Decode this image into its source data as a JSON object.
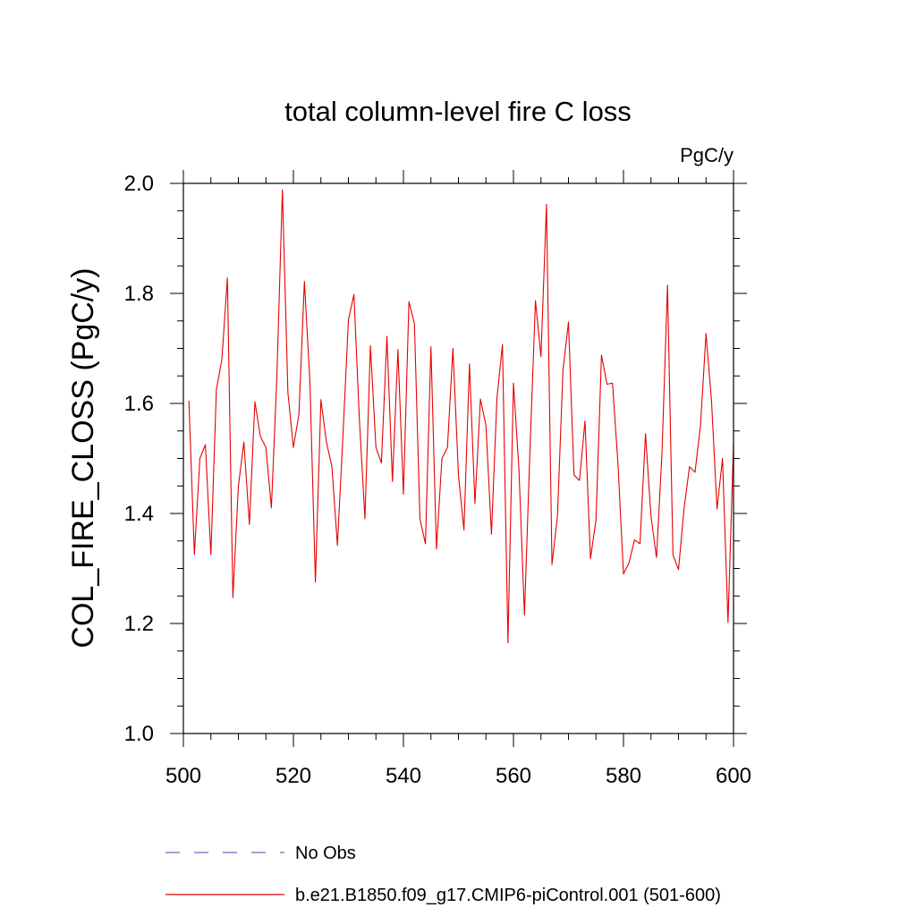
{
  "chart_data": {
    "type": "line",
    "title": "total column-level fire C loss",
    "units": "PgC/y",
    "ylabel": "COL_FIRE_CLOSS  (PgC/y)",
    "xlabel": "",
    "xlim": [
      500,
      600
    ],
    "ylim": [
      1.0,
      2.0
    ],
    "xticks": [
      500,
      520,
      540,
      560,
      580,
      600
    ],
    "yticks": [
      1.0,
      1.2,
      1.4,
      1.6,
      1.8,
      2.0
    ],
    "ytick_labels": [
      "1.0",
      "1.2",
      "1.4",
      "1.6",
      "1.8",
      "2.0"
    ],
    "grid": false,
    "legend_position": "bottom-left",
    "legend": [
      {
        "label": "No Obs",
        "color": "#6a6ac8",
        "dash": "dashed"
      },
      {
        "label": "b.e21.B1850.f09_g17.CMIP6-piControl.001 (501-600)",
        "color": "#e60000",
        "dash": "solid"
      }
    ],
    "series": [
      {
        "name": "b.e21.B1850.f09_g17.CMIP6-piControl.001 (501-600)",
        "color": "#e60000",
        "x": [
          501,
          502,
          503,
          504,
          505,
          506,
          507,
          508,
          509,
          510,
          511,
          512,
          513,
          514,
          515,
          516,
          517,
          518,
          519,
          520,
          521,
          522,
          523,
          524,
          525,
          526,
          527,
          528,
          529,
          530,
          531,
          532,
          533,
          534,
          535,
          536,
          537,
          538,
          539,
          540,
          541,
          542,
          543,
          544,
          545,
          546,
          547,
          548,
          549,
          550,
          551,
          552,
          553,
          554,
          555,
          556,
          557,
          558,
          559,
          560,
          561,
          562,
          563,
          564,
          565,
          566,
          567,
          568,
          569,
          570,
          571,
          572,
          573,
          574,
          575,
          576,
          577,
          578,
          579,
          580,
          581,
          582,
          583,
          584,
          585,
          586,
          587,
          588,
          589,
          590,
          591,
          592,
          593,
          594,
          595,
          596,
          597,
          598,
          599,
          600
        ],
        "y": [
          1.605,
          1.325,
          1.5,
          1.525,
          1.325,
          1.625,
          1.68,
          1.828,
          1.247,
          1.45,
          1.53,
          1.38,
          1.603,
          1.54,
          1.52,
          1.41,
          1.65,
          1.988,
          1.62,
          1.52,
          1.58,
          1.822,
          1.64,
          1.275,
          1.607,
          1.53,
          1.485,
          1.342,
          1.54,
          1.752,
          1.798,
          1.57,
          1.39,
          1.705,
          1.52,
          1.492,
          1.722,
          1.458,
          1.698,
          1.435,
          1.785,
          1.745,
          1.39,
          1.345,
          1.703,
          1.335,
          1.5,
          1.52,
          1.7,
          1.47,
          1.37,
          1.672,
          1.418,
          1.608,
          1.56,
          1.362,
          1.61,
          1.707,
          1.165,
          1.637,
          1.48,
          1.215,
          1.515,
          1.787,
          1.685,
          1.962,
          1.307,
          1.395,
          1.66,
          1.748,
          1.47,
          1.46,
          1.568,
          1.318,
          1.388,
          1.688,
          1.635,
          1.637,
          1.49,
          1.29,
          1.31,
          1.352,
          1.345,
          1.545,
          1.395,
          1.32,
          1.51,
          1.815,
          1.325,
          1.298,
          1.408,
          1.485,
          1.475,
          1.56,
          1.727,
          1.605,
          1.408,
          1.5,
          1.202,
          1.528
        ]
      }
    ]
  }
}
